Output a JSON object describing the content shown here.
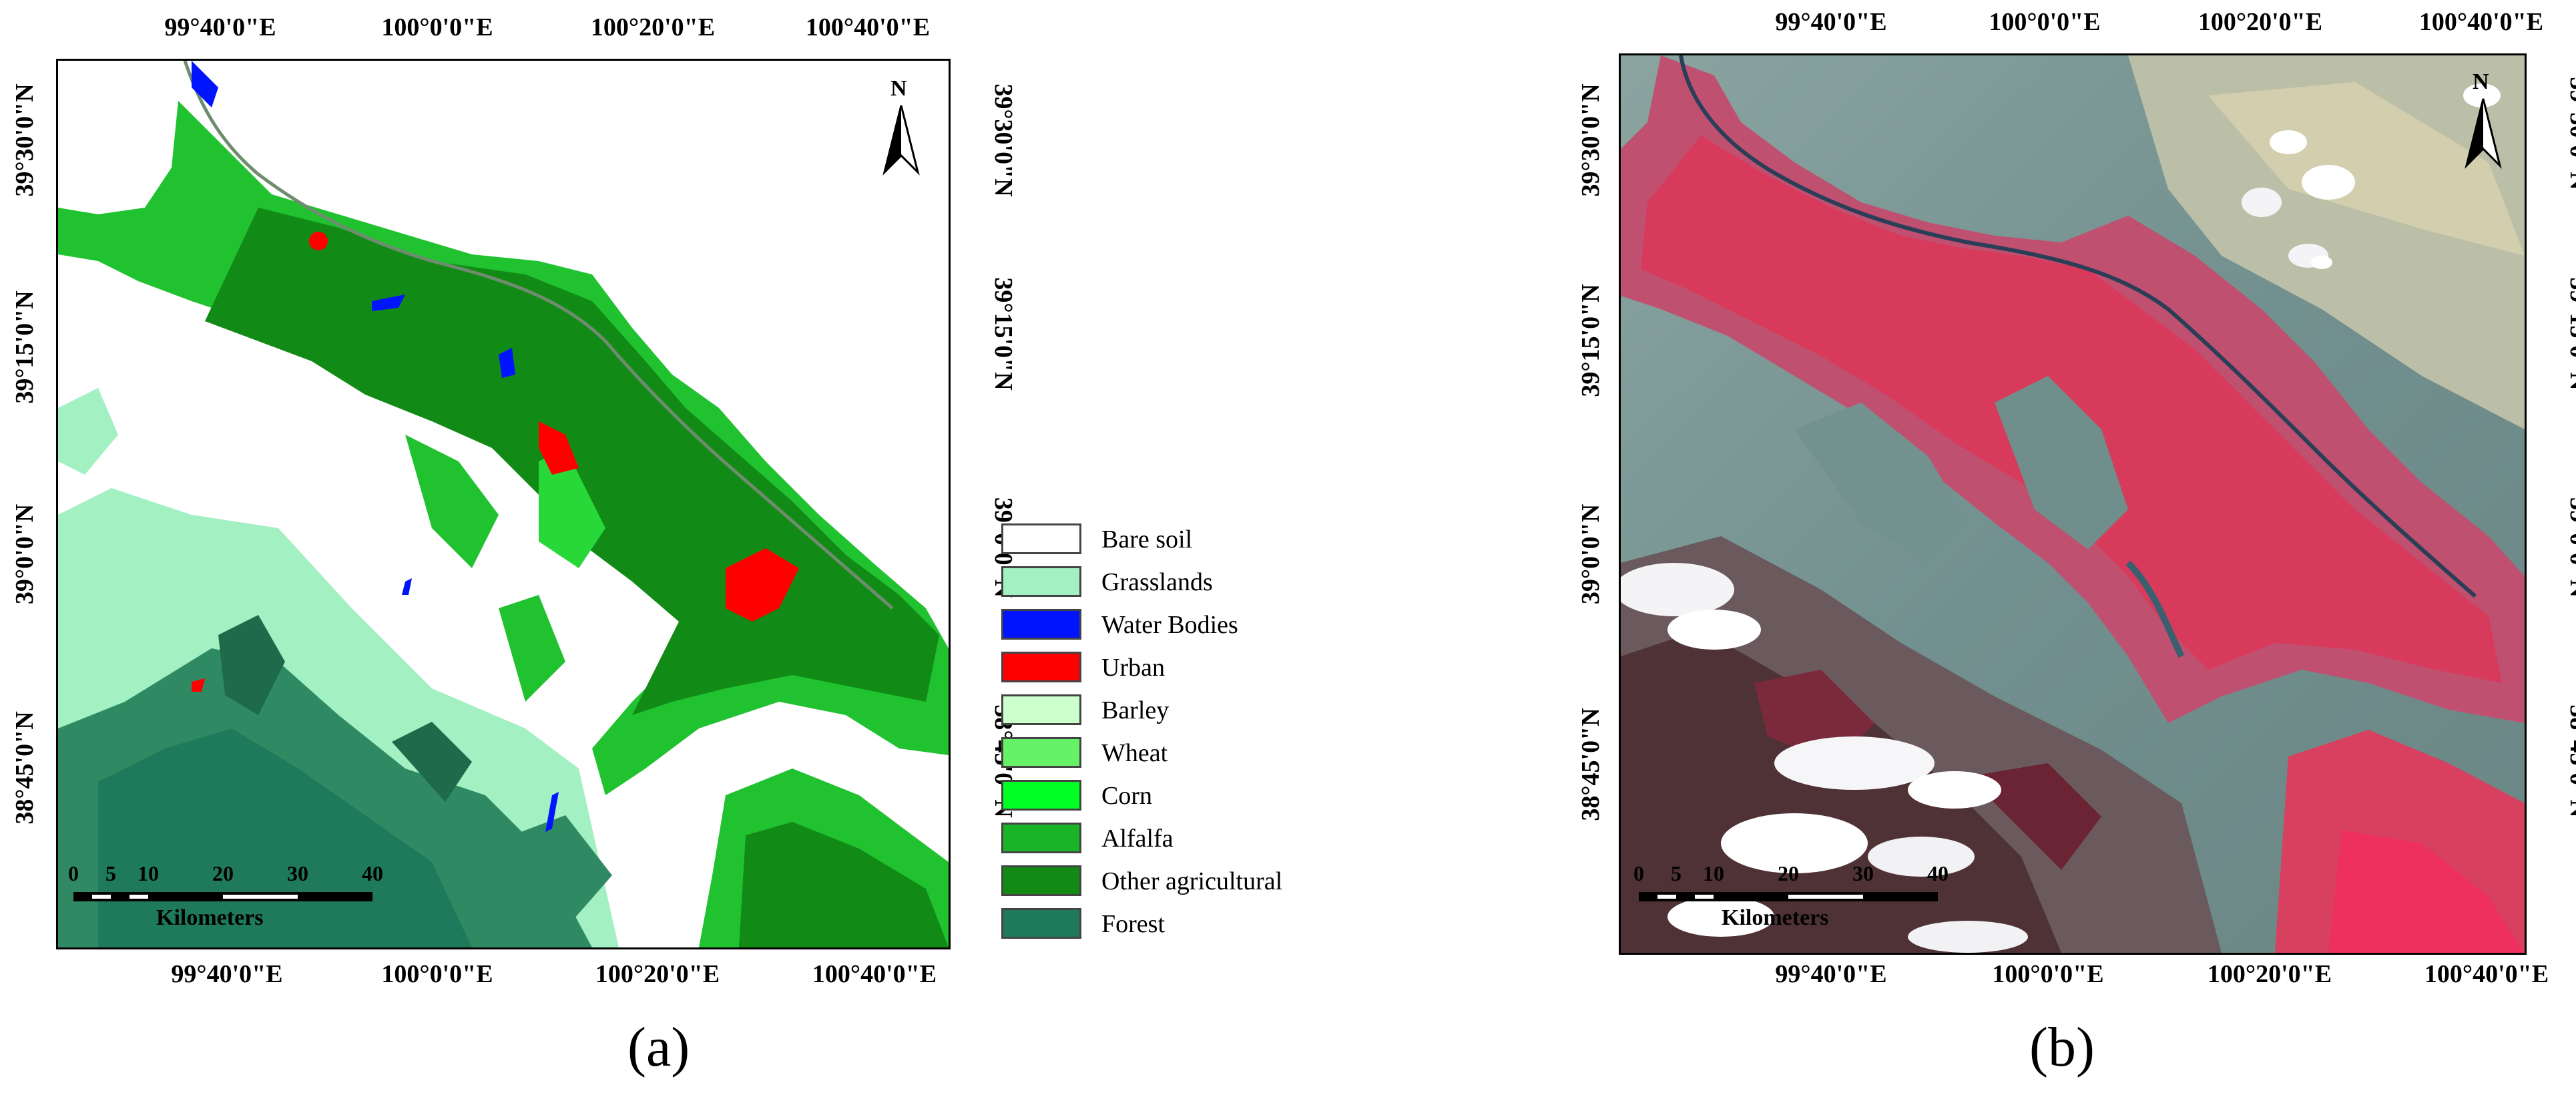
{
  "panel_a": {
    "label": "(a)",
    "title": "",
    "x_ticks": [
      "99°40'0\"E",
      "100°0'0\"E",
      "100°20'0\"E",
      "100°40'0\"E"
    ],
    "y_ticks": [
      "39°30'0\"N",
      "39°15'0\"N",
      "39°0'0\"N",
      "38°45'0\"N"
    ],
    "north_label": "N",
    "scale": {
      "numbers": [
        "0",
        "5",
        "10",
        "20",
        "30",
        "40"
      ],
      "unit": "Kilometers"
    },
    "legend": [
      {
        "label": "Bare soil",
        "color": "#ffffff"
      },
      {
        "label": "Grasslands",
        "color": "#a3f0c2"
      },
      {
        "label": "Water Bodies",
        "color": "#0014ff"
      },
      {
        "label": "Urban",
        "color": "#ff0000"
      },
      {
        "label": "Barley",
        "color": "#ccffcc"
      },
      {
        "label": "Wheat",
        "color": "#66f266"
      },
      {
        "label": "Corn",
        "color": "#00ff22"
      },
      {
        "label": "Alfalfa",
        "color": "#19b428"
      },
      {
        "label": "Other agricultural",
        "color": "#138a14"
      },
      {
        "label": "Forest",
        "color": "#1e7a5a"
      }
    ]
  },
  "panel_b": {
    "label": "(b)",
    "x_ticks": [
      "99°40'0\"E",
      "100°0'0\"E",
      "100°20'0\"E",
      "100°40'0\"E"
    ],
    "y_ticks": [
      "39°30'0\"N",
      "39°15'0\"N",
      "39°0'0\"N",
      "38°45'0\"N"
    ],
    "north_label": "N",
    "scale": {
      "numbers": [
        "0",
        "5",
        "10",
        "20",
        "30",
        "40"
      ],
      "unit": "Kilometers"
    }
  }
}
